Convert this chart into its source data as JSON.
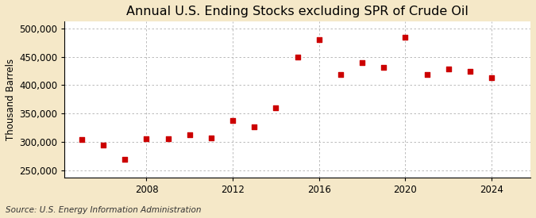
{
  "title": "Annual U.S. Ending Stocks excluding SPR of Crude Oil",
  "ylabel": "Thousand Barrels",
  "source": "Source: U.S. Energy Information Administration",
  "background_color": "#f5e8c8",
  "plot_background_color": "#ffffff",
  "marker_color": "#cc0000",
  "years": [
    2005,
    2006,
    2007,
    2008,
    2009,
    2010,
    2011,
    2012,
    2013,
    2014,
    2015,
    2016,
    2017,
    2018,
    2019,
    2020,
    2021,
    2022,
    2023,
    2024
  ],
  "values": [
    304000,
    294000,
    269000,
    306000,
    305000,
    312000,
    307000,
    338000,
    326000,
    360000,
    449000,
    480000,
    419000,
    440000,
    431000,
    484000,
    419000,
    429000,
    424000,
    413000
  ],
  "ylim": [
    237000,
    512000
  ],
  "yticks": [
    250000,
    300000,
    350000,
    400000,
    450000,
    500000
  ],
  "xticks": [
    2008,
    2012,
    2016,
    2020,
    2024
  ],
  "xlim": [
    2004.2,
    2025.8
  ],
  "grid_color": "#b0b0b0",
  "title_fontsize": 11.5,
  "label_fontsize": 8.5,
  "tick_fontsize": 8.5,
  "source_fontsize": 7.5
}
